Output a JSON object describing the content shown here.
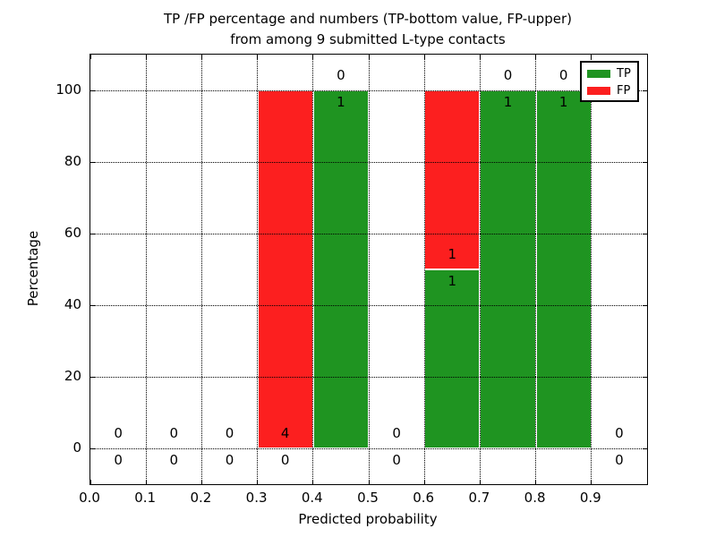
{
  "chart_data": {
    "type": "bar",
    "stacked": true,
    "title_lines": [
      "TP /FP percentage and numbers (TP-bottom value, FP-upper)",
      "from among 9 submitted L-type contacts"
    ],
    "xlabel": "Predicted probability",
    "ylabel": "Percentage",
    "xlim": [
      0.0,
      1.0
    ],
    "ylim": [
      -10,
      110
    ],
    "grid": "dotted",
    "legend_position": "upper right",
    "bin_width": 0.1,
    "bin_centers": [
      0.05,
      0.15,
      0.25,
      0.35,
      0.45,
      0.55,
      0.65,
      0.75,
      0.85,
      0.95
    ],
    "xticks": [
      "0.0",
      "0.1",
      "0.2",
      "0.3",
      "0.4",
      "0.5",
      "0.6",
      "0.7",
      "0.8",
      "0.9"
    ],
    "xtick_values": [
      0.0,
      0.1,
      0.2,
      0.3,
      0.4,
      0.5,
      0.6,
      0.7,
      0.8,
      0.9
    ],
    "yticks": [
      "0",
      "20",
      "40",
      "60",
      "80",
      "100"
    ],
    "ytick_values": [
      0,
      20,
      40,
      60,
      80,
      100
    ],
    "series": [
      {
        "name": "TP",
        "color": "#1f9421",
        "percentages": [
          0,
          0,
          0,
          0,
          100,
          0,
          50,
          100,
          100,
          0
        ],
        "counts": [
          0,
          0,
          0,
          0,
          1,
          0,
          1,
          1,
          1,
          0
        ]
      },
      {
        "name": "FP",
        "color": "#fc1f1f",
        "percentages": [
          0,
          0,
          0,
          100,
          0,
          0,
          50,
          0,
          0,
          0
        ],
        "counts": [
          0,
          0,
          0,
          4,
          0,
          0,
          1,
          0,
          0,
          0
        ]
      }
    ]
  }
}
